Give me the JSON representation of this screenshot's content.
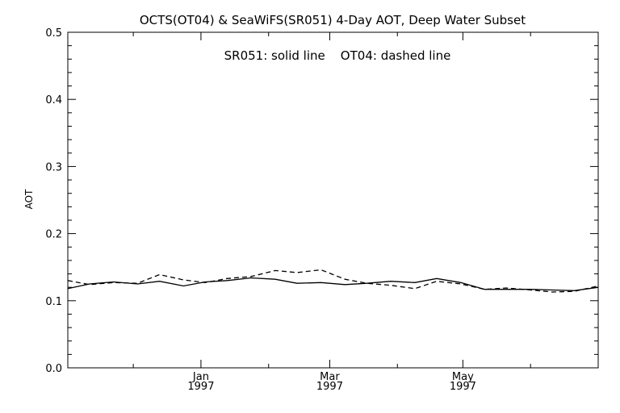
{
  "chart_data": {
    "type": "line",
    "title": "OCTS(OT04) & SeaWiFS(SR051) 4-Day AOT, Deep Water Subset",
    "annotation": "SR051: solid line    OT04: dashed line",
    "xlabel": "",
    "ylabel": "AOT",
    "ylim": [
      0.0,
      0.5
    ],
    "yticks": [
      "0.0",
      "0.1",
      "0.2",
      "0.3",
      "0.4",
      "0.5"
    ],
    "xlim": [
      "1996-11-01",
      "1997-07-02"
    ],
    "xticks": [
      {
        "date": "1997-01-01",
        "label1": "Jan",
        "label2": "1997"
      },
      {
        "date": "1997-03-01",
        "label1": "Mar",
        "label2": "1997"
      },
      {
        "date": "1997-05-01",
        "label1": "May",
        "label2": "1997"
      }
    ],
    "minor_xticks": [
      "1996-12-01",
      "1997-02-01",
      "1997-04-01",
      "1997-06-01"
    ],
    "grid": false,
    "series": [
      {
        "name": "SR051",
        "style": "solid",
        "color": "#000000",
        "x": [
          "1996-11-01",
          "1996-11-11",
          "1996-11-22",
          "1996-12-03",
          "1996-12-13",
          "1996-12-24",
          "1997-01-03",
          "1997-01-13",
          "1997-01-24",
          "1997-02-04",
          "1997-02-14",
          "1997-02-25",
          "1997-03-08",
          "1997-03-18",
          "1997-03-29",
          "1997-04-09",
          "1997-04-19",
          "1997-04-30",
          "1997-05-11",
          "1997-05-21",
          "1997-06-01",
          "1997-06-11",
          "1997-06-21",
          "1997-07-02"
        ],
        "values": [
          0.118,
          0.125,
          0.128,
          0.125,
          0.129,
          0.122,
          0.128,
          0.13,
          0.134,
          0.132,
          0.126,
          0.127,
          0.124,
          0.126,
          0.129,
          0.127,
          0.133,
          0.127,
          0.117,
          0.117,
          0.117,
          0.116,
          0.115,
          0.12
        ]
      },
      {
        "name": "OT04",
        "style": "dashed",
        "color": "#000000",
        "x": [
          "1996-11-01",
          "1996-11-11",
          "1996-11-22",
          "1996-12-03",
          "1996-12-13",
          "1996-12-24",
          "1997-01-03",
          "1997-01-13",
          "1997-01-24",
          "1997-02-04",
          "1997-02-14",
          "1997-02-25",
          "1997-03-08",
          "1997-03-18",
          "1997-03-29",
          "1997-04-09",
          "1997-04-19",
          "1997-04-30",
          "1997-05-11",
          "1997-05-21",
          "1997-06-01",
          "1997-06-11",
          "1997-06-21",
          "1997-07-02"
        ],
        "values": [
          0.13,
          0.124,
          0.127,
          0.126,
          0.139,
          0.131,
          0.127,
          0.133,
          0.136,
          0.145,
          0.142,
          0.146,
          0.132,
          0.126,
          0.123,
          0.118,
          0.129,
          0.125,
          0.117,
          0.119,
          0.116,
          0.113,
          0.114,
          0.122
        ]
      }
    ]
  }
}
